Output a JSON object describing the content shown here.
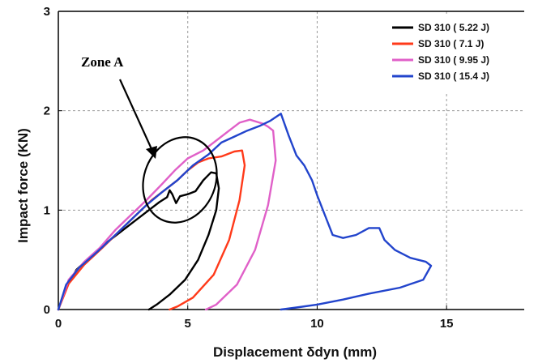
{
  "chart_data": {
    "type": "line",
    "xlabel": "Displacement δdyn (mm)",
    "ylabel": "Impact force (KN)",
    "xlim": [
      0,
      18
    ],
    "ylim": [
      0,
      3
    ],
    "xticks": [
      0,
      5,
      10,
      15
    ],
    "yticks": [
      0,
      1,
      2,
      3
    ],
    "grid": true,
    "legend_position": "top-right",
    "annotation": {
      "text": "Zone A"
    },
    "series": [
      {
        "name": "SD 310 ( 5.22 J)",
        "color": "#000000",
        "points": [
          [
            0.0,
            0.0
          ],
          [
            0.3,
            0.22
          ],
          [
            0.7,
            0.4
          ],
          [
            1.2,
            0.52
          ],
          [
            1.8,
            0.66
          ],
          [
            2.4,
            0.78
          ],
          [
            3.0,
            0.9
          ],
          [
            3.5,
            1.0
          ],
          [
            3.9,
            1.08
          ],
          [
            4.2,
            1.13
          ],
          [
            4.3,
            1.2
          ],
          [
            4.4,
            1.16
          ],
          [
            4.55,
            1.07
          ],
          [
            4.7,
            1.14
          ],
          [
            5.0,
            1.16
          ],
          [
            5.3,
            1.19
          ],
          [
            5.6,
            1.3
          ],
          [
            5.9,
            1.38
          ],
          [
            6.1,
            1.37
          ],
          [
            6.2,
            1.22
          ],
          [
            6.1,
            1.0
          ],
          [
            5.8,
            0.75
          ],
          [
            5.4,
            0.5
          ],
          [
            4.9,
            0.3
          ],
          [
            4.3,
            0.15
          ],
          [
            3.8,
            0.05
          ],
          [
            3.5,
            0.0
          ]
        ]
      },
      {
        "name": "SD 310 ( 7.1 J)",
        "color": "#ff3a1a",
        "points": [
          [
            0.0,
            0.0
          ],
          [
            0.4,
            0.26
          ],
          [
            1.0,
            0.45
          ],
          [
            1.7,
            0.62
          ],
          [
            2.4,
            0.8
          ],
          [
            3.0,
            0.95
          ],
          [
            3.6,
            1.1
          ],
          [
            4.1,
            1.2
          ],
          [
            4.6,
            1.3
          ],
          [
            5.0,
            1.4
          ],
          [
            5.4,
            1.48
          ],
          [
            5.8,
            1.52
          ],
          [
            6.3,
            1.54
          ],
          [
            6.8,
            1.59
          ],
          [
            7.1,
            1.6
          ],
          [
            7.2,
            1.45
          ],
          [
            7.0,
            1.1
          ],
          [
            6.6,
            0.7
          ],
          [
            6.0,
            0.35
          ],
          [
            5.2,
            0.12
          ],
          [
            4.6,
            0.03
          ],
          [
            4.3,
            0.0
          ]
        ]
      },
      {
        "name": "SD 310 ( 9.95 J)",
        "color": "#e060c8",
        "points": [
          [
            0.0,
            0.0
          ],
          [
            0.4,
            0.3
          ],
          [
            1.0,
            0.48
          ],
          [
            1.6,
            0.62
          ],
          [
            2.2,
            0.8
          ],
          [
            2.8,
            0.95
          ],
          [
            3.4,
            1.1
          ],
          [
            4.0,
            1.26
          ],
          [
            4.5,
            1.4
          ],
          [
            5.0,
            1.52
          ],
          [
            5.6,
            1.6
          ],
          [
            6.2,
            1.72
          ],
          [
            6.6,
            1.8
          ],
          [
            7.0,
            1.88
          ],
          [
            7.4,
            1.91
          ],
          [
            7.9,
            1.87
          ],
          [
            8.1,
            1.84
          ],
          [
            8.3,
            1.8
          ],
          [
            8.4,
            1.5
          ],
          [
            8.1,
            1.05
          ],
          [
            7.6,
            0.6
          ],
          [
            6.9,
            0.25
          ],
          [
            6.1,
            0.05
          ],
          [
            5.7,
            0.0
          ]
        ]
      },
      {
        "name": "SD 310 ( 15.4 J)",
        "color": "#2244cc",
        "points": [
          [
            0.0,
            0.0
          ],
          [
            0.3,
            0.25
          ],
          [
            0.8,
            0.42
          ],
          [
            1.5,
            0.58
          ],
          [
            2.2,
            0.75
          ],
          [
            2.8,
            0.9
          ],
          [
            3.4,
            1.05
          ],
          [
            4.0,
            1.18
          ],
          [
            4.6,
            1.3
          ],
          [
            5.2,
            1.45
          ],
          [
            5.8,
            1.56
          ],
          [
            6.3,
            1.68
          ],
          [
            6.8,
            1.74
          ],
          [
            7.3,
            1.8
          ],
          [
            7.8,
            1.85
          ],
          [
            8.2,
            1.9
          ],
          [
            8.6,
            1.97
          ],
          [
            8.9,
            1.75
          ],
          [
            9.2,
            1.55
          ],
          [
            9.5,
            1.45
          ],
          [
            9.8,
            1.3
          ],
          [
            10.0,
            1.15
          ],
          [
            10.3,
            0.95
          ],
          [
            10.6,
            0.75
          ],
          [
            11.0,
            0.72
          ],
          [
            11.5,
            0.75
          ],
          [
            12.0,
            0.82
          ],
          [
            12.4,
            0.82
          ],
          [
            12.6,
            0.7
          ],
          [
            13.0,
            0.6
          ],
          [
            13.6,
            0.52
          ],
          [
            14.2,
            0.48
          ],
          [
            14.4,
            0.44
          ],
          [
            14.1,
            0.3
          ],
          [
            13.2,
            0.22
          ],
          [
            12.0,
            0.16
          ],
          [
            11.0,
            0.1
          ],
          [
            10.0,
            0.05
          ],
          [
            9.2,
            0.02
          ],
          [
            8.6,
            0.0
          ]
        ]
      }
    ]
  }
}
